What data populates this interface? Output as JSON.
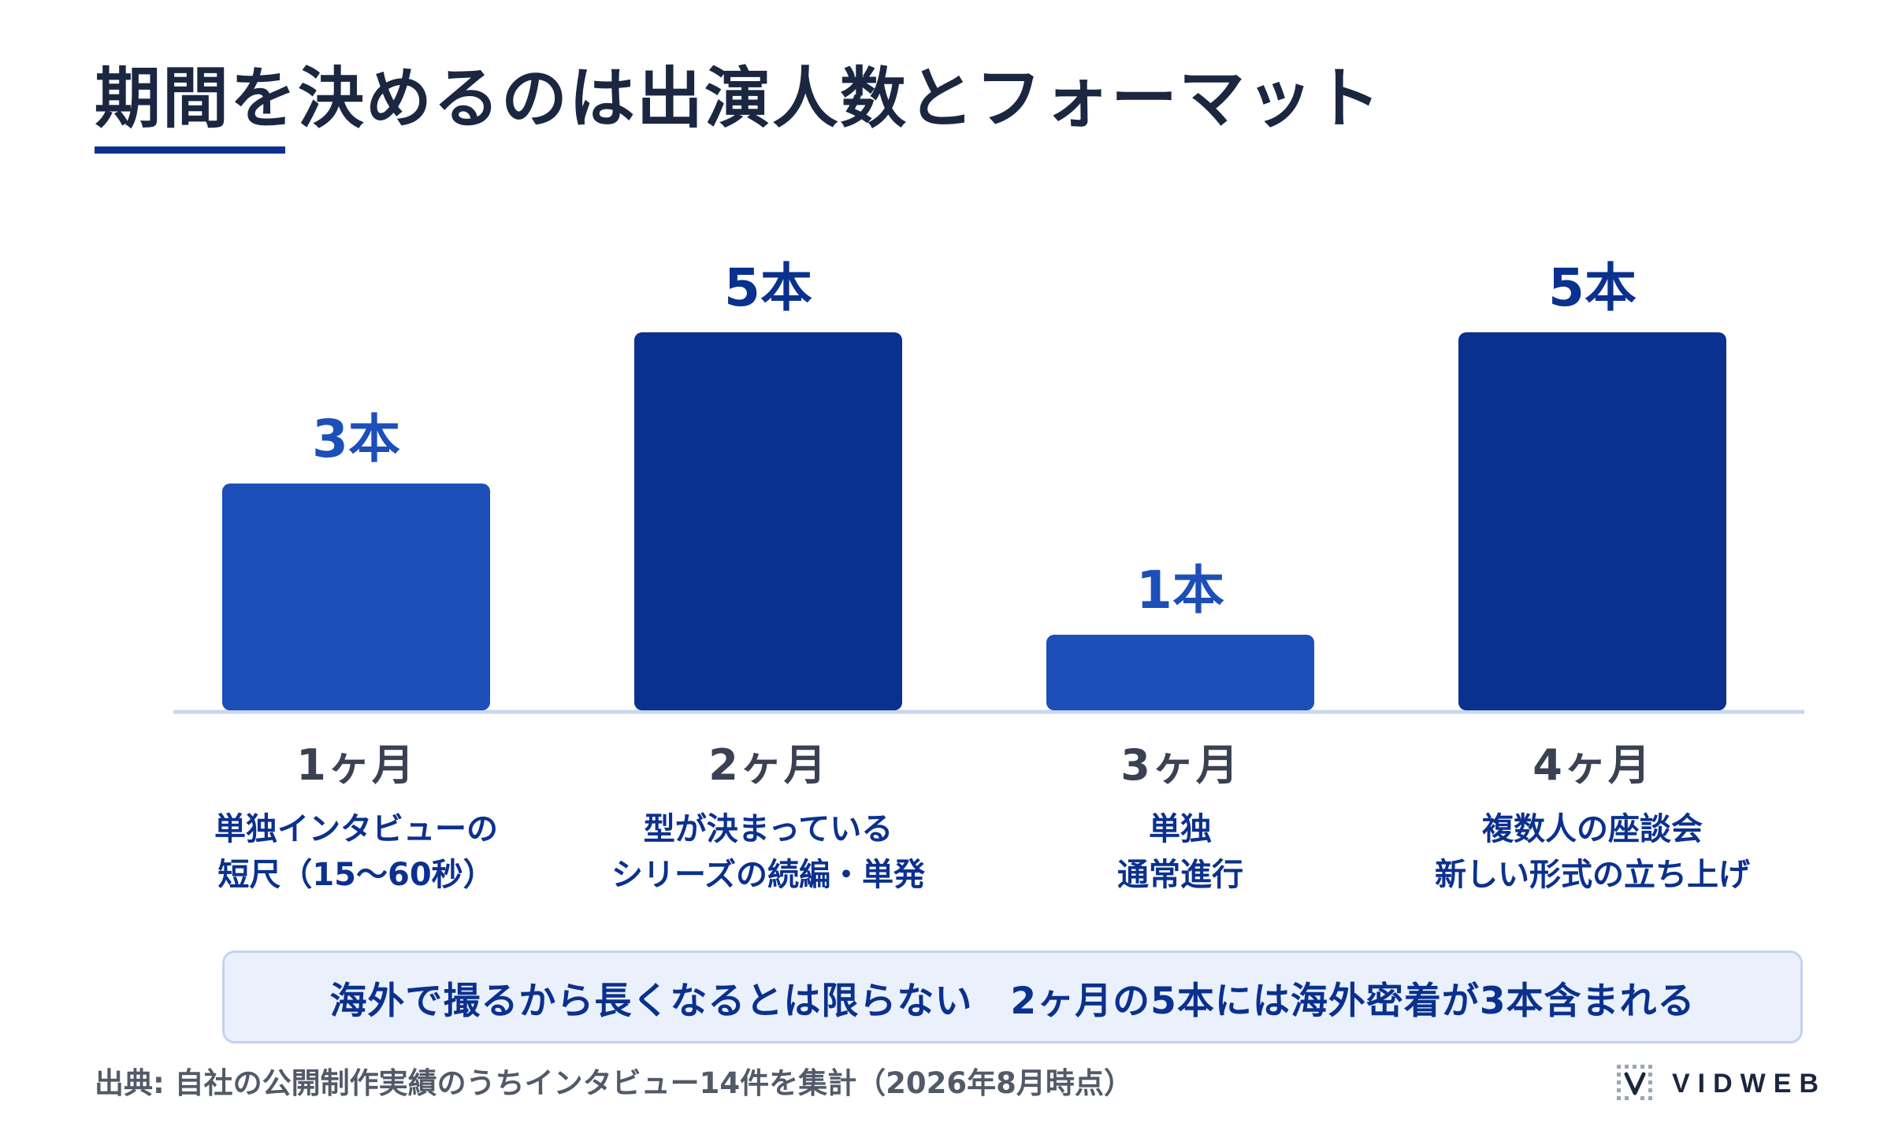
{
  "title": "期間を決めるのは出演人数とフォーマット",
  "chart_data": {
    "type": "bar",
    "categories": [
      "1ヶ月",
      "2ヶ月",
      "3ヶ月",
      "4ヶ月"
    ],
    "values": [
      3,
      5,
      1,
      5
    ],
    "data_labels": [
      "3本",
      "5本",
      "1本",
      "5本"
    ],
    "descriptions": [
      "単独インタビューの\n短尺（15〜60秒）",
      "型が決まっている\nシリーズの続編・単発",
      "単独\n通常進行",
      "複数人の座談会\n新しい形式の立ち上げ"
    ],
    "ylim": [
      0,
      5
    ],
    "grid": false,
    "colors": {
      "short_duration": "#1c4fb8",
      "long_duration": "#0b318e",
      "label_short": "#1c4fb8",
      "label_long": "#0b318e",
      "baseline": "#c9d6ee"
    }
  },
  "callout": "海外で撮るから長くなるとは限らない　2ヶ月の5本には海外密着が3本含まれる",
  "source": "出典: 自社の公開制作実績のうちインタビュー14件を集計（2026年8月時点）",
  "brand": {
    "name": "VIDWEB",
    "icon": "dotted-v-logo-icon"
  }
}
